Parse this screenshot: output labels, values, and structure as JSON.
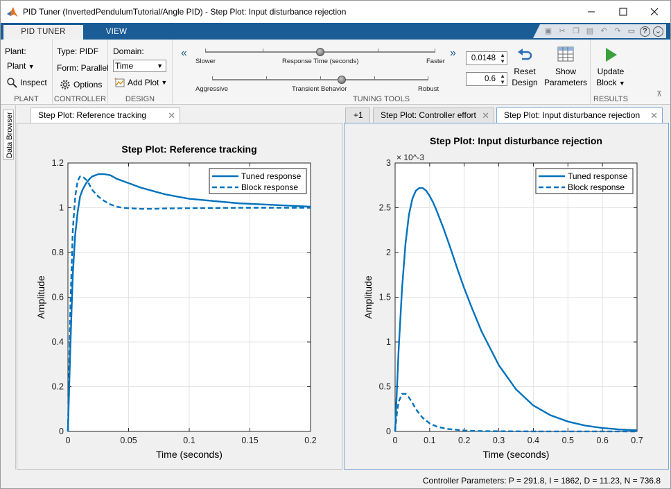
{
  "window": {
    "title": "PID Tuner (InvertedPendulumTutorial/Angle PID) - Step Plot: Input disturbance rejection"
  },
  "tabs": [
    {
      "label": "PID TUNER"
    },
    {
      "label": "VIEW"
    }
  ],
  "ribbon": {
    "plant": {
      "plant_label": "Plant:",
      "plant_dropdown": "Plant",
      "inspect_label": "Inspect",
      "section_label": "PLANT"
    },
    "controller": {
      "type_label": "Type: PIDF",
      "form_label": "Form: Parallel",
      "options_label": "Options",
      "section_label": "CONTROLLER"
    },
    "design": {
      "domain_label": "Domain:",
      "domain_value": "Time",
      "add_plot_label": "Add Plot",
      "section_label": "DESIGN"
    },
    "tuning": {
      "response_time": {
        "left": "Slower",
        "center": "Response Time (seconds)",
        "right": "Faster",
        "value": "0.0148",
        "slider_position": 0.5
      },
      "transient": {
        "left": "Aggressive",
        "center": "Transient Behavior",
        "right": "Robust",
        "value": "0.6",
        "slider_position": 0.6
      },
      "reset_label_1": "Reset",
      "reset_label_2": "Design",
      "show_label_1": "Show",
      "show_label_2": "Parameters",
      "section_label": "TUNING TOOLS"
    },
    "results": {
      "update_label_1": "Update",
      "update_label_2": "Block",
      "section_label": "RESULTS"
    }
  },
  "data_browser": {
    "label": "Data Browser"
  },
  "left_pane": {
    "tab_label": "Step Plot: Reference tracking"
  },
  "right_pane": {
    "overflow_label": "+1",
    "tabs": [
      {
        "label": "Step Plot: Controller effort"
      },
      {
        "label": "Step Plot: Input disturbance rejection"
      }
    ]
  },
  "chart_data": [
    {
      "type": "line",
      "title": "Step Plot: Reference tracking",
      "xlabel": "Time (seconds)",
      "ylabel": "Amplitude",
      "xlim": [
        0,
        0.2
      ],
      "ylim": [
        0,
        1.2
      ],
      "xticks": [
        "0",
        "0.05",
        "0.1",
        "0.15",
        "0.2"
      ],
      "yticks": [
        "0",
        "0.2",
        "0.4",
        "0.6",
        "0.8",
        "1",
        "1.2"
      ],
      "grid": true,
      "legend": "top-right",
      "series": [
        {
          "name": "Tuned response",
          "style": "solid",
          "color": "#0072bd",
          "x": [
            0,
            0.002,
            0.004,
            0.006,
            0.008,
            0.01,
            0.012,
            0.015,
            0.018,
            0.02,
            0.025,
            0.03,
            0.035,
            0.04,
            0.05,
            0.06,
            0.07,
            0.08,
            0.09,
            0.1,
            0.12,
            0.14,
            0.16,
            0.18,
            0.2
          ],
          "y": [
            0,
            0.38,
            0.7,
            0.88,
            0.98,
            1.05,
            1.08,
            1.11,
            1.13,
            1.14,
            1.15,
            1.15,
            1.145,
            1.13,
            1.11,
            1.09,
            1.075,
            1.06,
            1.05,
            1.04,
            1.03,
            1.02,
            1.015,
            1.01,
            1.005
          ]
        },
        {
          "name": "Block response",
          "style": "dashed",
          "color": "#0072bd",
          "x": [
            0,
            0.002,
            0.004,
            0.006,
            0.008,
            0.01,
            0.012,
            0.014,
            0.016,
            0.018,
            0.02,
            0.025,
            0.03,
            0.035,
            0.04,
            0.045,
            0.05,
            0.06,
            0.07,
            0.08,
            0.1,
            0.12,
            0.15,
            0.2
          ],
          "y": [
            0,
            0.55,
            0.9,
            1.05,
            1.12,
            1.14,
            1.14,
            1.13,
            1.12,
            1.1,
            1.08,
            1.05,
            1.03,
            1.015,
            1.005,
            1.0,
            0.998,
            0.995,
            0.995,
            0.997,
            0.998,
            0.999,
            1.0,
            1.0
          ]
        }
      ]
    },
    {
      "type": "line",
      "title": "Step Plot: Input disturbance rejection",
      "xlabel": "Time (seconds)",
      "ylabel": "Amplitude",
      "y_multiplier": "× 10^-3",
      "xlim": [
        0,
        0.7
      ],
      "ylim": [
        0,
        3
      ],
      "xticks": [
        "0",
        "0.1",
        "0.2",
        "0.3",
        "0.4",
        "0.5",
        "0.6",
        "0.7"
      ],
      "yticks": [
        "0",
        "0.5",
        "1",
        "1.5",
        "2",
        "2.5",
        "3"
      ],
      "grid": true,
      "legend": "top-right",
      "series": [
        {
          "name": "Tuned response",
          "style": "solid",
          "color": "#0072bd",
          "x": [
            0,
            0.01,
            0.02,
            0.03,
            0.04,
            0.05,
            0.06,
            0.07,
            0.08,
            0.09,
            0.1,
            0.11,
            0.12,
            0.14,
            0.16,
            0.18,
            0.2,
            0.22,
            0.25,
            0.3,
            0.35,
            0.4,
            0.45,
            0.5,
            0.55,
            0.6,
            0.65,
            0.7
          ],
          "y": [
            0,
            0.9,
            1.6,
            2.1,
            2.42,
            2.6,
            2.69,
            2.72,
            2.72,
            2.69,
            2.63,
            2.56,
            2.47,
            2.27,
            2.05,
            1.82,
            1.6,
            1.4,
            1.12,
            0.74,
            0.47,
            0.29,
            0.18,
            0.11,
            0.065,
            0.038,
            0.022,
            0.013
          ]
        },
        {
          "name": "Block response",
          "style": "dashed",
          "color": "#0072bd",
          "x": [
            0,
            0.005,
            0.01,
            0.02,
            0.03,
            0.04,
            0.05,
            0.06,
            0.08,
            0.1,
            0.12,
            0.15,
            0.2,
            0.25,
            0.3,
            0.4,
            0.7
          ],
          "y": [
            0,
            0.2,
            0.33,
            0.42,
            0.42,
            0.38,
            0.32,
            0.25,
            0.15,
            0.09,
            0.055,
            0.028,
            0.01,
            0.004,
            0.002,
            0.001,
            0.0
          ]
        }
      ]
    }
  ],
  "status": {
    "text": "Controller Parameters: P = 291.8, I = 1862, D = 11.23, N = 736.8"
  }
}
